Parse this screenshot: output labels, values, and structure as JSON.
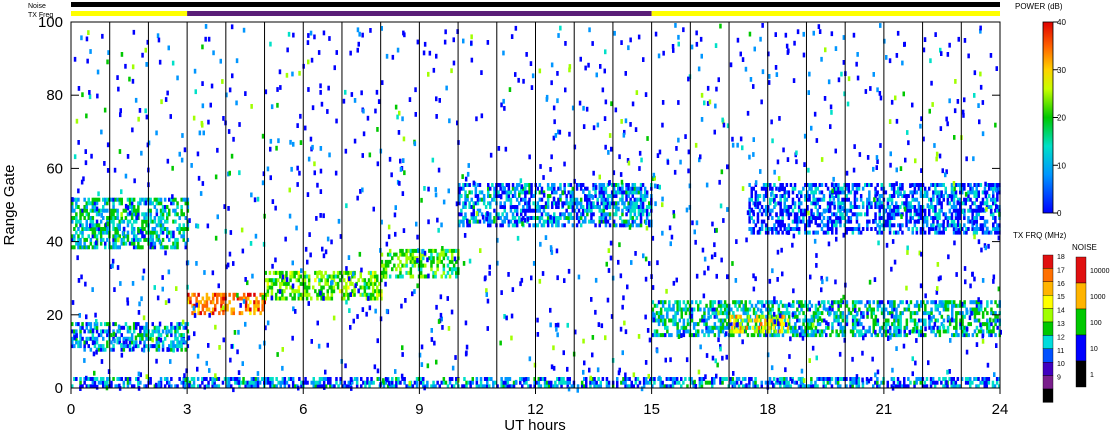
{
  "chart_data": {
    "type": "heatmap",
    "title": "",
    "xlabel": "UT hours",
    "ylabel": "Range Gate",
    "xlim": [
      0,
      24
    ],
    "ylim": [
      0,
      100
    ],
    "x_ticks": [
      "0",
      "3",
      "6",
      "9",
      "12",
      "15",
      "18",
      "21",
      "24"
    ],
    "y_ticks": [
      "0",
      "20",
      "40",
      "60",
      "80",
      "100"
    ],
    "x_tick_values": [
      0,
      3,
      6,
      9,
      12,
      15,
      18,
      21,
      24
    ],
    "y_tick_values": [
      0,
      20,
      40,
      60,
      80,
      100
    ],
    "grid_hours": [
      1,
      2,
      3,
      4,
      5,
      6,
      7,
      8,
      9,
      10,
      11,
      12,
      13,
      14,
      15,
      16,
      17,
      18,
      19,
      20,
      21,
      22,
      23
    ],
    "status_bars": {
      "noise_label": "Noise",
      "txfreq_label": "TX Freq",
      "txfreq_segments": [
        {
          "start": 0,
          "end": 3,
          "color": "#ffff00"
        },
        {
          "start": 3,
          "end": 15,
          "color": "#5a1e78"
        },
        {
          "start": 15,
          "end": 24,
          "color": "#ffff00"
        }
      ]
    },
    "echo_bands": [
      {
        "t0": 0,
        "t1": 3,
        "g0": 38,
        "g1": 52,
        "level": 12
      },
      {
        "t0": 0,
        "t1": 3,
        "g0": 10,
        "g1": 18,
        "level": 10
      },
      {
        "t0": 3,
        "t1": 5,
        "g0": 20,
        "g1": 26,
        "level": 36
      },
      {
        "t0": 5,
        "t1": 8,
        "g0": 24,
        "g1": 32,
        "level": 20
      },
      {
        "t0": 8,
        "t1": 10,
        "g0": 30,
        "g1": 38,
        "level": 18
      },
      {
        "t0": 10,
        "t1": 15,
        "g0": 44,
        "g1": 56,
        "level": 8
      },
      {
        "t0": 15,
        "t1": 24,
        "g0": 14,
        "g1": 24,
        "level": 12
      },
      {
        "t0": 17,
        "t1": 18.5,
        "g0": 15,
        "g1": 20,
        "level": 28
      },
      {
        "t0": 17.5,
        "t1": 24,
        "g0": 42,
        "g1": 56,
        "level": 6
      },
      {
        "t0": 0,
        "t1": 24,
        "g0": 0,
        "g1": 3,
        "level": 8
      }
    ],
    "power_colorbar": {
      "label": "POWER (dB)",
      "min": 0,
      "max": 40,
      "ticks": [
        "40",
        "30",
        "20",
        "10",
        "0"
      ]
    },
    "txfrq_colorbar": {
      "label": "TX FRQ (MHz)",
      "ticks": [
        "18",
        "17",
        "16",
        "15",
        "14",
        "13",
        "12",
        "11",
        "10",
        "9"
      ],
      "colors": [
        "#e01010",
        "#ff7000",
        "#ffb400",
        "#ffff00",
        "#a0ff00",
        "#00c800",
        "#00dcdc",
        "#0050ff",
        "#4000c0",
        "#7a1e8c",
        "#000000"
      ]
    },
    "noise_colorbar": {
      "label": "NOISE",
      "ticks": [
        "10000",
        "1000",
        "100",
        "10",
        "1"
      ],
      "colors": [
        "#e01010",
        "#ffb400",
        "#00c800",
        "#0000ff",
        "#000000"
      ]
    }
  }
}
